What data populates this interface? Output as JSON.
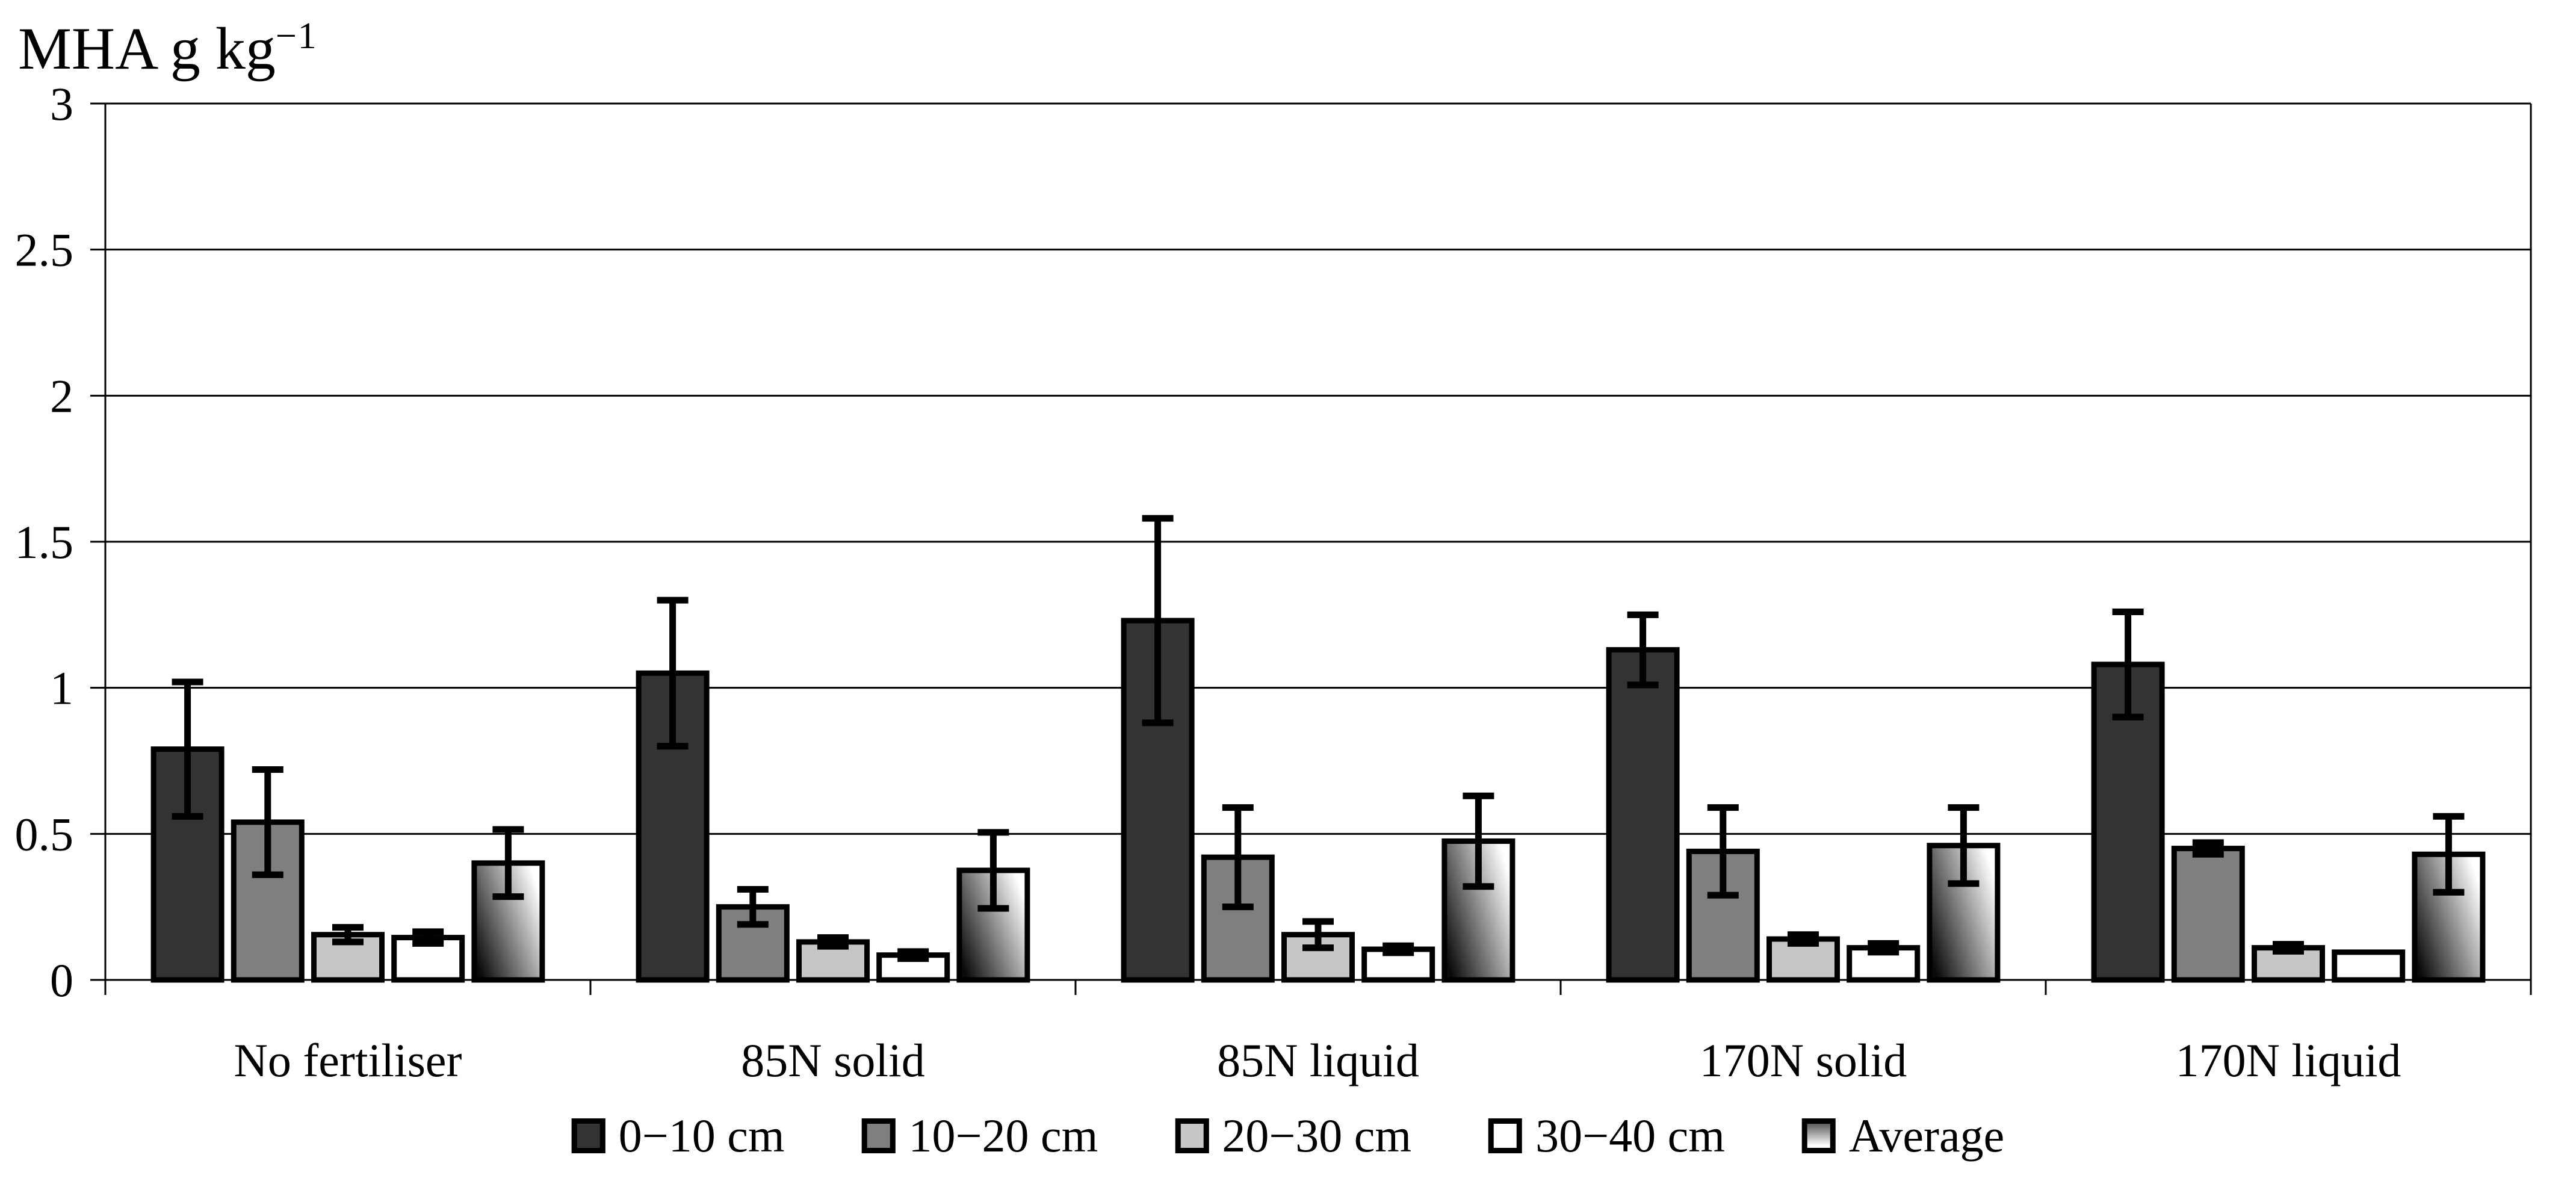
{
  "figure": {
    "background": "#ffffff",
    "y_axis_title": "MHA g kg",
    "y_axis_title_sup": "−1"
  },
  "chart_data": {
    "type": "bar",
    "title": "",
    "ylabel": "MHA g kg−1",
    "xlabel": "",
    "ylim": [
      0,
      3
    ],
    "ytick_step": 0.5,
    "ytick_labels": [
      "0",
      "0.5",
      "1",
      "1.5",
      "2",
      "2.5",
      "3"
    ],
    "grid": true,
    "legend_position": "bottom",
    "error_bars": true,
    "categories": [
      "No fertiliser",
      "85N solid",
      "85N liquid",
      "170N solid",
      "170N liquid"
    ],
    "series": [
      {
        "name": "0−10 cm",
        "fill": "#333333",
        "values": [
          0.79,
          1.05,
          1.23,
          1.13,
          1.08
        ],
        "errors": [
          0.23,
          0.25,
          0.35,
          0.12,
          0.18
        ]
      },
      {
        "name": "10−20 cm",
        "fill": "#7f7f7f",
        "values": [
          0.54,
          0.25,
          0.42,
          0.44,
          0.45
        ],
        "errors": [
          0.18,
          0.06,
          0.17,
          0.15,
          0.02
        ]
      },
      {
        "name": "20−30 cm",
        "fill": "#c6c6c6",
        "values": [
          0.155,
          0.13,
          0.155,
          0.14,
          0.11
        ],
        "errors": [
          0.025,
          0.015,
          0.045,
          0.015,
          0.012
        ]
      },
      {
        "name": "30−40 cm",
        "fill": "#ffffff",
        "values": [
          0.145,
          0.085,
          0.105,
          0.11,
          0.095
        ],
        "errors": [
          0.02,
          0.012,
          0.012,
          0.015,
          0
        ]
      },
      {
        "name": "Average",
        "fill": "gradient",
        "values": [
          0.4,
          0.375,
          0.475,
          0.46,
          0.43
        ],
        "errors": [
          0.115,
          0.13,
          0.155,
          0.13,
          0.13
        ]
      }
    ],
    "colors": {
      "axis": "#000000",
      "grid": "#000000",
      "bar_border": "#000000",
      "error_bar": "#000000",
      "text": "#000000",
      "gradient_dark": "#0a0a0a",
      "gradient_light": "#ffffff"
    }
  }
}
